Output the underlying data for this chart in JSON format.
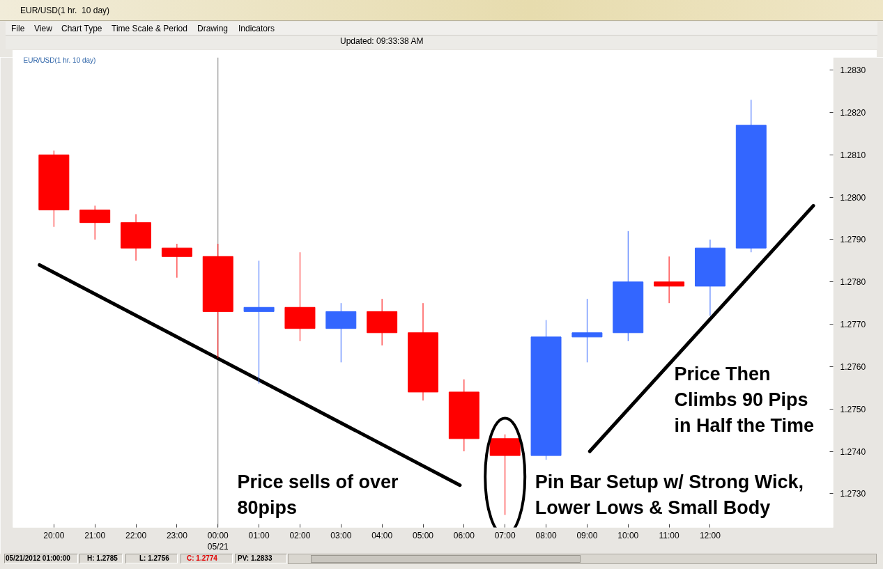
{
  "chart_data": {
    "type": "candlestick",
    "title": "EUR/USD(1 hr.  10 day)",
    "x": [
      "2012-05-20T20:00",
      "2012-05-20T21:00",
      "2012-05-20T22:00",
      "2012-05-20T23:00",
      "2012-05-21T00:00",
      "2012-05-21T01:00",
      "2012-05-21T02:00",
      "2012-05-21T03:00",
      "2012-05-21T04:00",
      "2012-05-21T05:00",
      "2012-05-21T06:00",
      "2012-05-21T07:00",
      "2012-05-21T08:00",
      "2012-05-21T09:00",
      "2012-05-21T10:00",
      "2012-05-21T11:00",
      "2012-05-21T12:00",
      "2012-05-21T13:00"
    ],
    "ohlc": [
      [
        1.281,
        1.2811,
        1.2793,
        1.2797
      ],
      [
        1.2797,
        1.2798,
        1.279,
        1.2794
      ],
      [
        1.2794,
        1.2796,
        1.2785,
        1.2788
      ],
      [
        1.2788,
        1.2789,
        1.2781,
        1.2786
      ],
      [
        1.2786,
        1.2789,
        1.2762,
        1.2773
      ],
      [
        1.2773,
        1.2785,
        1.2756,
        1.2774
      ],
      [
        1.2774,
        1.2787,
        1.2766,
        1.2769
      ],
      [
        1.2769,
        1.2775,
        1.2761,
        1.2773
      ],
      [
        1.2773,
        1.2776,
        1.2765,
        1.2768
      ],
      [
        1.2768,
        1.2775,
        1.2752,
        1.2754
      ],
      [
        1.2754,
        1.2757,
        1.274,
        1.2743
      ],
      [
        1.2743,
        1.2744,
        1.2725,
        1.2739
      ],
      [
        1.2739,
        1.2771,
        1.2738,
        1.2767
      ],
      [
        1.2767,
        1.2776,
        1.2761,
        1.2768
      ],
      [
        1.2768,
        1.2792,
        1.2766,
        1.278
      ],
      [
        1.278,
        1.2786,
        1.2775,
        1.2779
      ],
      [
        1.2779,
        1.279,
        1.2772,
        1.2788
      ],
      [
        1.2788,
        1.2823,
        1.2787,
        1.2817
      ]
    ],
    "colors": [
      "#ff0000",
      "#ff0000",
      "#ff0000",
      "#ff0000",
      "#ff0000",
      "#3366ff",
      "#ff0000",
      "#3366ff",
      "#ff0000",
      "#ff0000",
      "#ff0000",
      "#ff0000",
      "#3366ff",
      "#3366ff",
      "#3366ff",
      "#ff0000",
      "#3366ff",
      "#3366ff"
    ],
    "series": [
      {
        "type": "line",
        "color": "#000000",
        "x": [
          "2012-05-20T19:39",
          "2012-05-21T05:54"
        ],
        "values": [
          1.2784,
          1.2732
        ]
      },
      {
        "type": "line",
        "color": "#000000",
        "x": [
          "2012-05-21T09:04",
          "2012-05-21T14:31"
        ],
        "values": [
          1.274,
          1.2798
        ]
      }
    ],
    "xlim": [
      "2012-05-20T19:00",
      "2012-05-21T15:00"
    ],
    "xticks": [
      {
        "value": "2012-05-20T20:00",
        "label": "20:00"
      },
      {
        "value": "2012-05-20T21:00",
        "label": "21:00"
      },
      {
        "value": "2012-05-20T22:00",
        "label": "22:00"
      },
      {
        "value": "2012-05-20T23:00",
        "label": "23:00"
      },
      {
        "value": "2012-05-21T00:00",
        "label": "00:00\n05/21"
      },
      {
        "value": "2012-05-21T01:00",
        "label": "01:00"
      },
      {
        "value": "2012-05-21T02:00",
        "label": "02:00"
      },
      {
        "value": "2012-05-21T03:00",
        "label": "03:00"
      },
      {
        "value": "2012-05-21T04:00",
        "label": "04:00"
      },
      {
        "value": "2012-05-21T05:00",
        "label": "05:00"
      },
      {
        "value": "2012-05-21T06:00",
        "label": "06:00"
      },
      {
        "value": "2012-05-21T07:00",
        "label": "07:00"
      },
      {
        "value": "2012-05-21T08:00",
        "label": "08:00"
      },
      {
        "value": "2012-05-21T09:00",
        "label": "09:00"
      },
      {
        "value": "2012-05-21T10:00",
        "label": "10:00"
      },
      {
        "value": "2012-05-21T11:00",
        "label": "11:00"
      },
      {
        "value": "2012-05-21T12:00",
        "label": "12:00"
      }
    ],
    "ylim": [
      1.2722,
      1.2833
    ],
    "yticks": [
      {
        "value": 1.273,
        "label": "1.2730"
      },
      {
        "value": 1.274,
        "label": "1.2740"
      },
      {
        "value": 1.275,
        "label": "1.2750"
      },
      {
        "value": 1.276,
        "label": "1.2760"
      },
      {
        "value": 1.277,
        "label": "1.2770"
      },
      {
        "value": 1.278,
        "label": "1.2780"
      },
      {
        "value": 1.279,
        "label": "1.2790"
      },
      {
        "value": 1.28,
        "label": "1.2800"
      },
      {
        "value": 1.281,
        "label": "1.2810"
      },
      {
        "value": 1.282,
        "label": "1.2820"
      },
      {
        "value": 1.283,
        "label": "1.2830"
      }
    ],
    "ref_lines": [
      {
        "axis": "x",
        "value": "2012-05-21T00:00",
        "color": "#808080"
      }
    ],
    "annotations": [
      "EUR/USD(1 hr.  10 day)",
      "File",
      "View",
      "Chart Type",
      "Time Scale & Period",
      "Drawing",
      "Indicators",
      "Updated: 09:33:38 AM",
      "05/21/2012 01:00:00",
      "H: 1.2785",
      "L: 1.2756",
      "C: 1.2774",
      "PV: 1.2833",
      "Price sells of over 80pips",
      {
        "text": "Pin Bar Setup w/ Strong Wick, Lower Lows & Small Body",
        "x": "2012-05-21T07:00",
        "y": 1.2734
      },
      "Price Then Climbs 90 Pips in Half the Time"
    ]
  }
}
